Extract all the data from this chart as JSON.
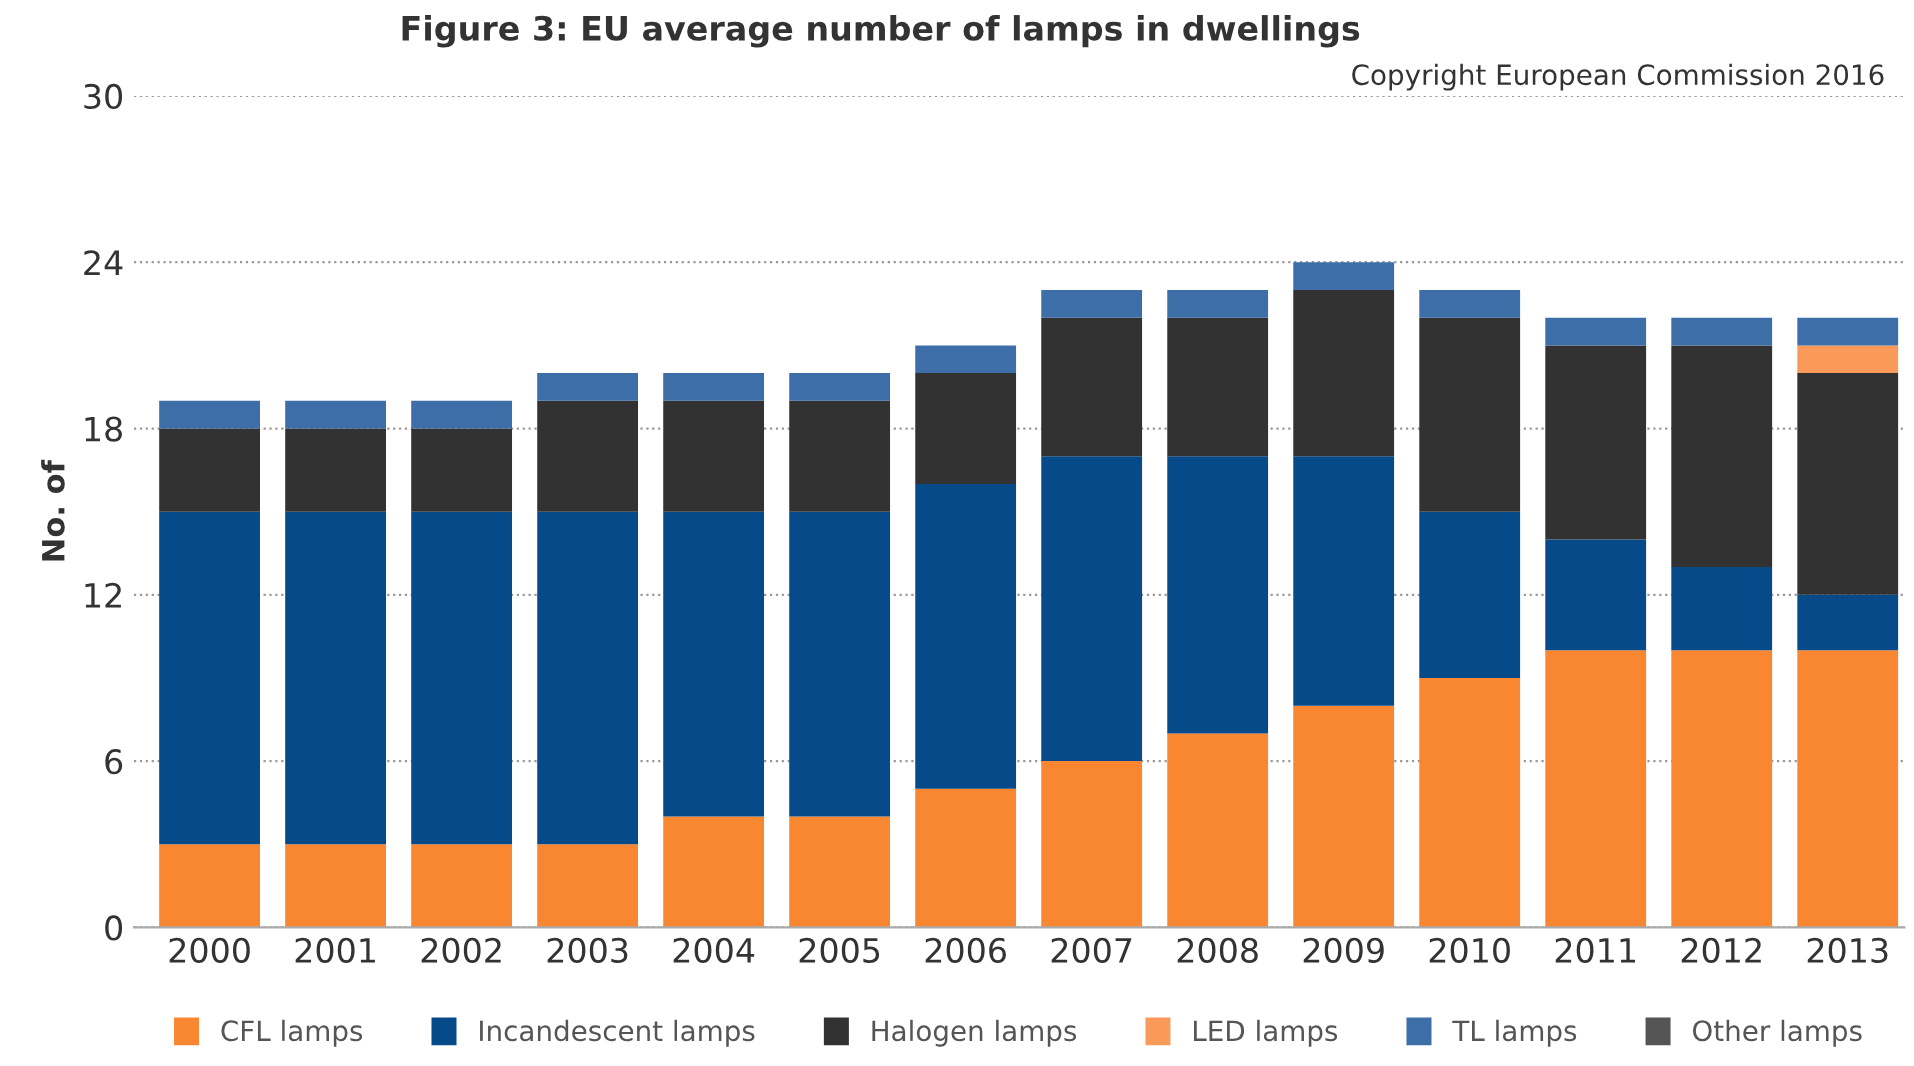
{
  "chart_data": {
    "type": "bar",
    "title": "Figure 3: EU average number of lamps in dwellings",
    "ylabel": "No. of",
    "annotations": [
      "Copyright European Commission 2016"
    ],
    "categories": [
      "2000",
      "2001",
      "2002",
      "2003",
      "2004",
      "2005",
      "2006",
      "2007",
      "2008",
      "2009",
      "2010",
      "2011",
      "2012",
      "2013"
    ],
    "stacked": true,
    "ylim": [
      0,
      30
    ],
    "yticks": [
      0,
      6,
      12,
      18,
      24,
      30
    ],
    "grid": "y",
    "legend": "bottom",
    "series": [
      {
        "name": "CFL lamps",
        "color": "#f98731",
        "values": [
          3,
          3,
          3,
          3,
          4,
          4,
          5,
          6,
          7,
          8,
          9,
          10,
          10,
          10
        ]
      },
      {
        "name": "Incandescent lamps",
        "color": "#064a8a",
        "values": [
          12,
          12,
          12,
          12,
          11,
          11,
          11,
          11,
          10,
          9,
          6,
          4,
          3,
          2
        ]
      },
      {
        "name": "Halogen lamps",
        "color": "#323232",
        "values": [
          3,
          3,
          3,
          4,
          4,
          4,
          4,
          5,
          5,
          6,
          7,
          7,
          8,
          8
        ]
      },
      {
        "name": "LED lamps",
        "color": "#f99a5a",
        "values": [
          0,
          0,
          0,
          0,
          0,
          0,
          0,
          0,
          0,
          0,
          0,
          0,
          0,
          1
        ]
      },
      {
        "name": "TL lamps",
        "color": "#3d6ea8",
        "values": [
          1,
          1,
          1,
          1,
          1,
          1,
          1,
          1,
          1,
          1,
          1,
          1,
          1,
          1
        ]
      },
      {
        "name": "Other lamps",
        "color": "#555555",
        "values": [
          0,
          0,
          0,
          0,
          0,
          0,
          0,
          0,
          0,
          0,
          0,
          0,
          0,
          0
        ]
      }
    ]
  }
}
